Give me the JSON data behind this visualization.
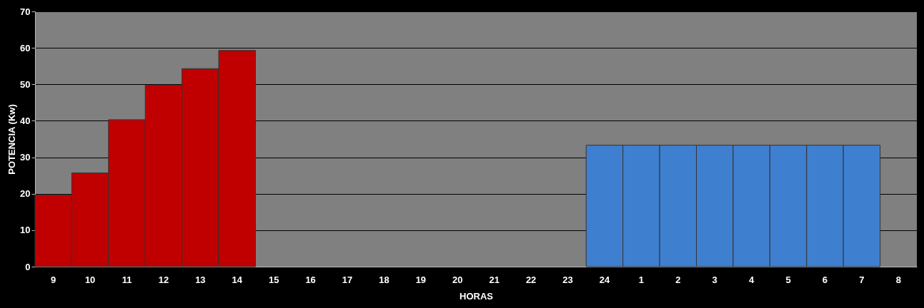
{
  "chart_data": {
    "type": "bar",
    "xlabel": "HORAS",
    "ylabel": "POTENCIA (Kw)",
    "categories": [
      "9",
      "10",
      "11",
      "12",
      "13",
      "14",
      "15",
      "16",
      "17",
      "18",
      "19",
      "20",
      "21",
      "22",
      "23",
      "24",
      "1",
      "2",
      "3",
      "4",
      "5",
      "6",
      "7",
      "8"
    ],
    "series": [
      {
        "color": "#c00000",
        "values": [
          19.7,
          25.7,
          40.3,
          49.8,
          54.3,
          59.3,
          null,
          null,
          null,
          null,
          null,
          null,
          null,
          null,
          null,
          null,
          null,
          null,
          null,
          null,
          null,
          null,
          null,
          null
        ]
      },
      {
        "color": "#3f7fd0",
        "values": [
          null,
          null,
          null,
          null,
          null,
          null,
          null,
          null,
          null,
          null,
          null,
          null,
          null,
          null,
          null,
          33.3,
          33.3,
          33.3,
          33.3,
          33.3,
          33.3,
          33.3,
          33.3,
          null
        ]
      }
    ],
    "ylim": [
      0,
      70
    ],
    "yticks": [
      0,
      10,
      20,
      30,
      40,
      50,
      60,
      70
    ],
    "grid": "y"
  }
}
